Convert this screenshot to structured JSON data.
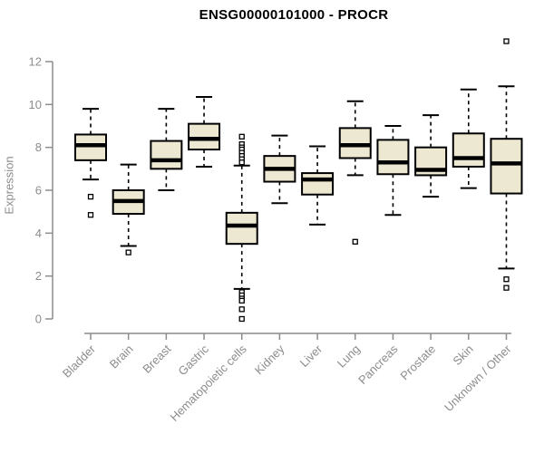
{
  "chart_data": {
    "type": "box",
    "title": "ENSG00000101000 - PROCR",
    "xlabel": "",
    "ylabel": "Expression",
    "ylim": [
      0,
      13
    ],
    "yticks": [
      0,
      2,
      4,
      6,
      8,
      10,
      12
    ],
    "grid": false,
    "legend": "none",
    "categories": [
      "Bladder",
      "Brain",
      "Breast",
      "Gastric",
      "Hematopoietic cells",
      "Kidney",
      "Liver",
      "Lung",
      "Pancreas",
      "Prostate",
      "Skin",
      "Unknown / Other"
    ],
    "series": [
      {
        "name": "Bladder",
        "whisker_low": 6.5,
        "q1": 7.4,
        "median": 8.1,
        "q3": 8.6,
        "whisker_high": 9.8,
        "outliers": [
          5.7,
          4.85
        ]
      },
      {
        "name": "Brain",
        "whisker_low": 3.4,
        "q1": 4.9,
        "median": 5.5,
        "q3": 6.0,
        "whisker_high": 7.2,
        "outliers": [
          3.1
        ]
      },
      {
        "name": "Breast",
        "whisker_low": 6.0,
        "q1": 7.0,
        "median": 7.4,
        "q3": 8.3,
        "whisker_high": 9.8,
        "outliers": []
      },
      {
        "name": "Gastric",
        "whisker_low": 7.1,
        "q1": 7.9,
        "median": 8.4,
        "q3": 9.1,
        "whisker_high": 10.35,
        "outliers": []
      },
      {
        "name": "Hematopoietic cells",
        "whisker_low": 1.4,
        "q1": 3.5,
        "median": 4.35,
        "q3": 4.95,
        "whisker_high": 7.15,
        "outliers": [
          8.5,
          8.15,
          8.0,
          7.9,
          7.75,
          7.6,
          7.45,
          7.3,
          1.25,
          1.1,
          0.95,
          0.85,
          0.45,
          0.0
        ]
      },
      {
        "name": "Kidney",
        "whisker_low": 5.4,
        "q1": 6.4,
        "median": 7.0,
        "q3": 7.6,
        "whisker_high": 8.55,
        "outliers": []
      },
      {
        "name": "Liver",
        "whisker_low": 4.4,
        "q1": 5.8,
        "median": 6.5,
        "q3": 6.8,
        "whisker_high": 8.05,
        "outliers": []
      },
      {
        "name": "Lung",
        "whisker_low": 6.7,
        "q1": 7.5,
        "median": 8.1,
        "q3": 8.9,
        "whisker_high": 10.15,
        "outliers": [
          3.6
        ]
      },
      {
        "name": "Pancreas",
        "whisker_low": 4.85,
        "q1": 6.75,
        "median": 7.3,
        "q3": 8.35,
        "whisker_high": 9.0,
        "outliers": []
      },
      {
        "name": "Prostate",
        "whisker_low": 5.7,
        "q1": 6.7,
        "median": 6.95,
        "q3": 8.0,
        "whisker_high": 9.5,
        "outliers": []
      },
      {
        "name": "Skin",
        "whisker_low": 6.1,
        "q1": 7.1,
        "median": 7.5,
        "q3": 8.65,
        "whisker_high": 10.7,
        "outliers": []
      },
      {
        "name": "Unknown / Other",
        "whisker_low": 2.35,
        "q1": 5.85,
        "median": 7.25,
        "q3": 8.4,
        "whisker_high": 10.85,
        "outliers": [
          12.95,
          1.85,
          1.45
        ]
      }
    ],
    "colors": {
      "box_fill": "#EDE8D1",
      "box_stroke": "#000000",
      "median": "#000000",
      "whisker": "#000000",
      "outlier_stroke": "#000000",
      "axis": "#8c8c8c",
      "tick_text": "#8c8c8c",
      "title_text": "#000000",
      "background": "#ffffff"
    }
  }
}
